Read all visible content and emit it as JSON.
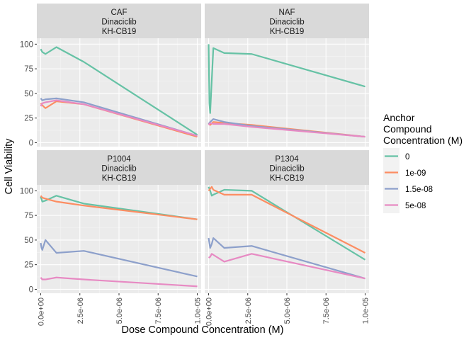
{
  "chart_data": {
    "type": "line",
    "xlabel": "Dose Compound Concentration (M)",
    "ylabel": "Cell Viability",
    "xlim": [
      -2.5e-07,
      1.025e-05
    ],
    "ylim": [
      -4,
      106
    ],
    "x_ticks": [
      0,
      2.5e-06,
      5e-06,
      7.5e-06,
      1e-05
    ],
    "x_tick_labels": [
      "0.0e+00",
      "2.5e-06",
      "5.0e-06",
      "7.5e-06",
      "1.0e-05"
    ],
    "y_ticks": [
      0,
      25,
      50,
      75,
      100
    ],
    "y_tick_labels": [
      "0",
      "25",
      "50",
      "75",
      "100"
    ],
    "grid": true,
    "legend": {
      "title": [
        "Anchor",
        "Compound",
        "Concentration (M)"
      ],
      "position": "right",
      "entries": [
        {
          "label": "0",
          "color": "#66c2a5"
        },
        {
          "label": "1e-09",
          "color": "#fc8d62"
        },
        {
          "label": "1.5e-08",
          "color": "#8da0cb"
        },
        {
          "label": "5e-08",
          "color": "#e78ac3"
        }
      ]
    },
    "colors": {
      "0": "#1b9e77",
      "1e-09": "#d95f02",
      "1.5e-08": "#7570b3",
      "5e-08": "#e7298a"
    },
    "facets": [
      {
        "strip": [
          "CAF",
          "Dinaciclib",
          "KH-CB19"
        ],
        "series": [
          {
            "name": "0",
            "x": [
              0,
              1e-07,
              3e-07,
              1e-06,
              2.75e-06,
              1e-05
            ],
            "y": [
              95,
              92,
              90,
              97,
              82,
              8
            ]
          },
          {
            "name": "1e-09",
            "x": [
              0,
              1e-07,
              3e-07,
              1e-06,
              2.75e-06,
              1e-05
            ],
            "y": [
              40,
              38,
              35,
              42,
              39,
              6
            ]
          },
          {
            "name": "1.5e-08",
            "x": [
              0,
              1e-07,
              3e-07,
              1e-06,
              2.75e-06,
              1e-05
            ],
            "y": [
              45,
              43,
              44,
              45,
              41,
              7
            ]
          },
          {
            "name": "5e-08",
            "x": [
              0,
              1e-07,
              3e-07,
              1e-06,
              2.75e-06,
              1e-05
            ],
            "y": [
              37,
              40,
              41,
              43,
              39,
              7
            ]
          }
        ]
      },
      {
        "strip": [
          "NAF",
          "Dinaciclib",
          "KH-CB19"
        ],
        "series": [
          {
            "name": "0",
            "x": [
              0,
              5e-08,
              1e-07,
              3e-07,
              1e-06,
              2.75e-06,
              1e-05
            ],
            "y": [
              100,
              40,
              30,
              96,
              91,
              90,
              57
            ]
          },
          {
            "name": "1e-09",
            "x": [
              0,
              5e-08,
              1e-07,
              3e-07,
              1e-06,
              2.75e-06,
              1e-05
            ],
            "y": [
              20,
              19,
              18,
              21,
              20,
              18,
              6
            ]
          },
          {
            "name": "1.5e-08",
            "x": [
              0,
              5e-08,
              1e-07,
              3e-07,
              1e-06,
              2.75e-06,
              1e-05
            ],
            "y": [
              19,
              20,
              21,
              24,
              21,
              17,
              6
            ]
          },
          {
            "name": "5e-08",
            "x": [
              0,
              5e-08,
              1e-07,
              3e-07,
              1e-06,
              2.75e-06,
              1e-05
            ],
            "y": [
              18,
              19,
              20,
              19,
              19,
              16,
              6
            ]
          }
        ]
      },
      {
        "strip": [
          "P1004",
          "Dinaciclib",
          "KH-CB19"
        ],
        "series": [
          {
            "name": "0",
            "x": [
              0,
              1e-07,
              3e-07,
              1e-06,
              2.75e-06,
              1e-05
            ],
            "y": [
              94,
              89,
              90,
              95,
              87,
              71
            ]
          },
          {
            "name": "1e-09",
            "x": [
              0,
              1e-07,
              3e-07,
              1e-06,
              2.75e-06,
              1e-05
            ],
            "y": [
              95,
              93,
              92,
              89,
              85,
              71
            ]
          },
          {
            "name": "1.5e-08",
            "x": [
              0,
              5e-08,
              1e-07,
              2e-07,
              3e-07,
              1e-06,
              2.75e-06,
              1e-05
            ],
            "y": [
              47,
              42,
              40,
              45,
              50,
              37,
              39,
              13
            ]
          },
          {
            "name": "5e-08",
            "x": [
              0,
              1e-07,
              3e-07,
              1e-06,
              2.75e-06,
              1e-05
            ],
            "y": [
              12,
              10,
              10,
              12,
              10,
              3
            ]
          }
        ]
      },
      {
        "strip": [
          "P1304",
          "Dinaciclib",
          "KH-CB19"
        ],
        "series": [
          {
            "name": "0",
            "x": [
              0,
              1e-07,
              2e-07,
              3e-07,
              1e-06,
              2.75e-06,
              1e-05
            ],
            "y": [
              104,
              100,
              95,
              96,
              101,
              100,
              30
            ]
          },
          {
            "name": "1e-09",
            "x": [
              0,
              1e-07,
              2e-07,
              3e-07,
              1e-06,
              2.75e-06,
              1e-05
            ],
            "y": [
              100,
              102,
              104,
              101,
              96,
              96,
              37
            ]
          },
          {
            "name": "1.5e-08",
            "x": [
              0,
              1e-07,
              2e-07,
              3e-07,
              1e-06,
              2.75e-06,
              1e-05
            ],
            "y": [
              52,
              42,
              46,
              52,
              42,
              44,
              11
            ]
          },
          {
            "name": "5e-08",
            "x": [
              0,
              1e-07,
              2e-07,
              3e-07,
              1e-06,
              2.75e-06,
              1e-05
            ],
            "y": [
              32,
              33,
              36,
              35,
              28,
              36,
              11
            ]
          }
        ]
      }
    ]
  }
}
